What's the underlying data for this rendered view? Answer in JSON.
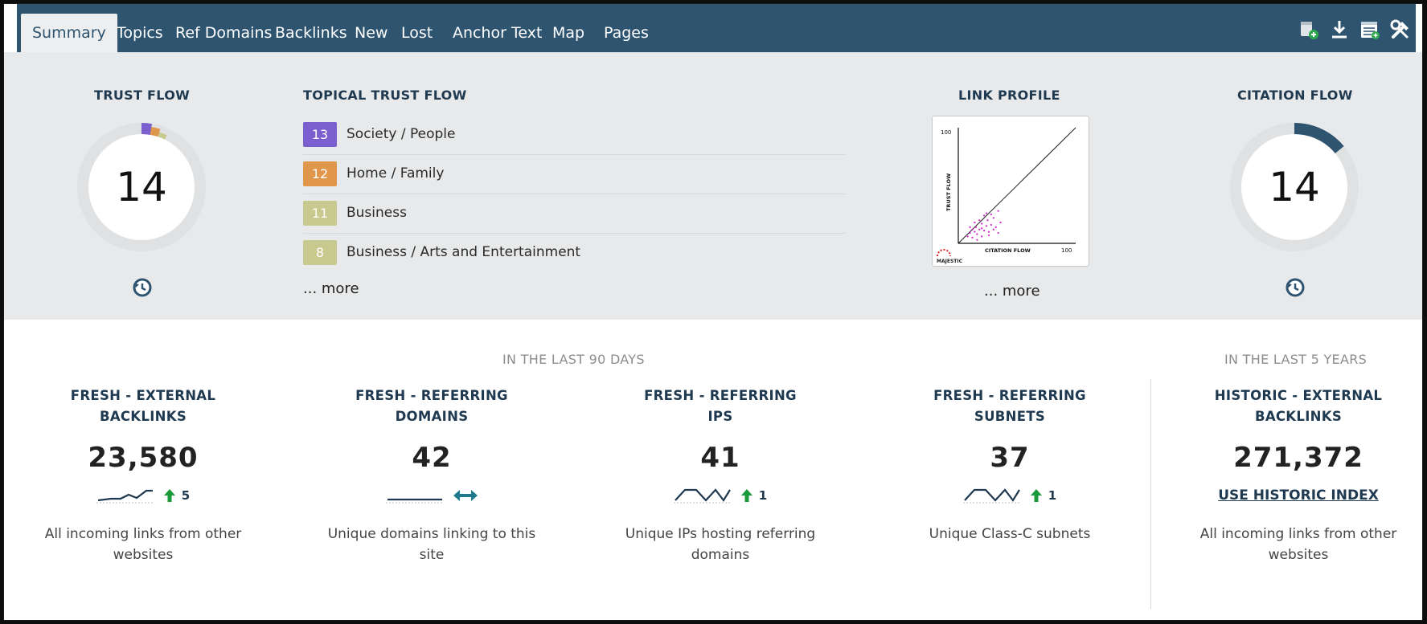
{
  "nav": {
    "tabs": [
      {
        "label": "Summary",
        "active": true
      },
      {
        "label": "Topics"
      },
      {
        "label": "Ref Domains"
      },
      {
        "label": "Backlinks"
      },
      {
        "label": "New"
      },
      {
        "label": "Lost"
      },
      {
        "label": "Anchor Text"
      },
      {
        "label": "Map"
      },
      {
        "label": "Pages"
      }
    ],
    "icons": [
      "add-to-bucket-icon",
      "download-icon",
      "report-icon",
      "tools-icon"
    ]
  },
  "trust_flow": {
    "heading": "TRUST FLOW",
    "value": "14",
    "segments": [
      {
        "value": 13,
        "color": "#7b5fcf"
      },
      {
        "value": 12,
        "color": "#e0964b"
      },
      {
        "value": 11,
        "color": "#c8c98e"
      }
    ]
  },
  "topical_trust_flow": {
    "heading": "TOPICAL TRUST FLOW",
    "items": [
      {
        "value": "13",
        "label": "Society / People",
        "color": "#7b5fcf"
      },
      {
        "value": "12",
        "label": "Home / Family",
        "color": "#e0964b"
      },
      {
        "value": "11",
        "label": "Business",
        "color": "#c8c98e"
      },
      {
        "value": "8",
        "label": "Business / Arts and Entertainment",
        "color": "#c8c98e"
      }
    ],
    "more": "... more"
  },
  "link_profile": {
    "heading": "LINK PROFILE",
    "axis_max": "100",
    "xlabel": "CITATION FLOW",
    "ylabel": "TRUST FLOW",
    "brand": "MAJESTIC",
    "more": "... more"
  },
  "citation_flow": {
    "heading": "CITATION FLOW",
    "value": "14",
    "color": "#2e5470"
  },
  "periods": {
    "recent": "IN THE LAST 90 DAYS",
    "historic": "IN THE LAST 5 YEARS"
  },
  "metrics": [
    {
      "title1": "FRESH - EXTERNAL",
      "title2": "BACKLINKS",
      "value": "23,580",
      "trend": "up",
      "delta": "5",
      "desc1": "All incoming links from other",
      "desc2": "websites"
    },
    {
      "title1": "FRESH - REFERRING",
      "title2": "DOMAINS",
      "value": "42",
      "trend": "flat",
      "delta": "",
      "desc1": "Unique domains linking to this",
      "desc2": "site"
    },
    {
      "title1": "FRESH - REFERRING",
      "title2": "IPS",
      "value": "41",
      "trend": "up",
      "delta": "1",
      "desc1": "Unique IPs hosting referring",
      "desc2": "domains"
    },
    {
      "title1": "FRESH - REFERRING",
      "title2": "SUBNETS",
      "value": "37",
      "trend": "up",
      "delta": "1",
      "desc1": "Unique Class-C subnets",
      "desc2": ""
    },
    {
      "title1": "HISTORIC - EXTERNAL",
      "title2": "BACKLINKS",
      "value": "271,372",
      "link": "USE HISTORIC INDEX",
      "desc1": "All incoming links from other",
      "desc2": "websites"
    }
  ],
  "colors": {
    "nav": "#2e5470",
    "panel": "#e8e9ea",
    "heading": "#1f3a50",
    "up_arrow": "#1a9a3a",
    "flat_arrow": "#1f7a8c"
  }
}
